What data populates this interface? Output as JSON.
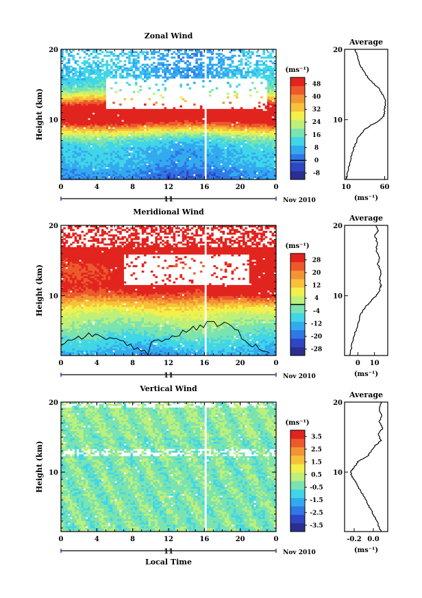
{
  "chart_data": [
    {
      "type": "heatmap",
      "title": "Zonal Wind",
      "ylabel": "Height (km)",
      "ylim": [
        1.5,
        20
      ],
      "y_ticks": [
        {
          "v": 10,
          "label": "10"
        },
        {
          "v": 20,
          "label": "20"
        }
      ],
      "x_ticks": [
        "0",
        "4",
        "8",
        "12",
        "16",
        "20",
        "0"
      ],
      "xlim": [
        0,
        24
      ],
      "date_axis": {
        "day_label": "11",
        "month_label": "Nov 2010"
      },
      "units": "(ms⁻¹)",
      "colorbar": {
        "ticks": [
          "48",
          "40",
          "32",
          "24",
          "16",
          "8",
          "0",
          "-8"
        ],
        "values": [
          48,
          40,
          32,
          24,
          16,
          8,
          0,
          -8
        ],
        "vmin": -12,
        "vmax": 52,
        "zero_line": 0
      },
      "profile": {
        "title": "Average",
        "xlim": [
          8,
          64
        ],
        "x_ticks": [
          {
            "v": 10,
            "label": "10"
          },
          {
            "v": 60,
            "label": "60"
          }
        ],
        "xlabel": "(ms⁻¹)",
        "points": [
          [
            10,
            1.5
          ],
          [
            13,
            3
          ],
          [
            16,
            4.5
          ],
          [
            20,
            6
          ],
          [
            26,
            7.5
          ],
          [
            33,
            8.5
          ],
          [
            42,
            9.2
          ],
          [
            52,
            9.8
          ],
          [
            59,
            10.5
          ],
          [
            60,
            11.5
          ],
          [
            61,
            12.5
          ],
          [
            58,
            13.5
          ],
          [
            52,
            14.5
          ],
          [
            45,
            15.2
          ],
          [
            38,
            16
          ],
          [
            32,
            17
          ],
          [
            27,
            18
          ],
          [
            24,
            19.2
          ],
          [
            22,
            20
          ]
        ]
      },
      "contour": false
    },
    {
      "type": "heatmap",
      "title": "Meridional Wind",
      "ylabel": "Height (km)",
      "ylim": [
        1.5,
        20
      ],
      "y_ticks": [
        {
          "v": 10,
          "label": "10"
        },
        {
          "v": 20,
          "label": "20"
        }
      ],
      "x_ticks": [
        "0",
        "4",
        "8",
        "12",
        "16",
        "20",
        "0"
      ],
      "xlim": [
        0,
        24
      ],
      "date_axis": {
        "day_label": "11",
        "month_label": "Nov 2010"
      },
      "units": "(ms⁻¹)",
      "colorbar": {
        "ticks": [
          "28",
          "20",
          "12",
          "4",
          "-4",
          "-12",
          "-20",
          "-28"
        ],
        "values": [
          28,
          20,
          12,
          4,
          -4,
          -12,
          -20,
          -28
        ],
        "vmin": -32,
        "vmax": 32,
        "zero_line": 0
      },
      "profile": {
        "title": "Average",
        "xlim": [
          -8,
          18
        ],
        "x_ticks": [
          {
            "v": 0,
            "label": "0"
          },
          {
            "v": 10,
            "label": "10"
          }
        ],
        "xlabel": "(ms⁻¹)",
        "points": [
          [
            -5,
            1.5
          ],
          [
            -3.5,
            3
          ],
          [
            -2,
            4.5
          ],
          [
            0,
            6
          ],
          [
            2,
            7.5
          ],
          [
            5,
            8.5
          ],
          [
            8,
            9.3
          ],
          [
            11,
            10
          ],
          [
            13,
            10.8
          ],
          [
            14,
            11.5
          ],
          [
            13,
            12.5
          ],
          [
            14,
            13.5
          ],
          [
            12,
            14.5
          ],
          [
            13,
            15.5
          ],
          [
            11,
            16.5
          ],
          [
            12,
            17.5
          ],
          [
            10,
            18.5
          ],
          [
            12,
            19.2
          ],
          [
            11,
            20
          ]
        ]
      },
      "contour": true
    },
    {
      "type": "heatmap",
      "title": "Vertical Wind",
      "ylabel": "Height (km)",
      "ylim": [
        1.5,
        20
      ],
      "y_ticks": [
        {
          "v": 10,
          "label": "10"
        },
        {
          "v": 20,
          "label": "20"
        }
      ],
      "x_ticks": [
        "0",
        "4",
        "8",
        "12",
        "16",
        "20",
        "0"
      ],
      "xlim": [
        0,
        24
      ],
      "date_axis": {
        "day_label": "11",
        "month_label": "Nov 2010"
      },
      "xlabel": "Local Time",
      "units": "(ms⁻¹)",
      "colorbar": {
        "ticks": [
          "3.5",
          "2.5",
          "1.5",
          "0.5",
          "-0.5",
          "-1.5",
          "-2.5",
          "-3.5"
        ],
        "values": [
          3.5,
          2.5,
          1.5,
          0.5,
          -0.5,
          -1.5,
          -2.5,
          -3.5
        ],
        "vmin": -4,
        "vmax": 4,
        "zero_line": null
      },
      "profile": {
        "title": "Average",
        "xlim": [
          -0.3,
          0.15
        ],
        "x_ticks": [
          {
            "v": -0.2,
            "label": "-0.2"
          },
          {
            "v": 0.0,
            "label": "0.0"
          }
        ],
        "xlabel": "(ms⁻¹)",
        "points": [
          [
            0.08,
            1.5
          ],
          [
            0.05,
            2.5
          ],
          [
            0.02,
            3.5
          ],
          [
            -0.02,
            4.5
          ],
          [
            -0.06,
            5.5
          ],
          [
            -0.1,
            6.5
          ],
          [
            -0.14,
            7.5
          ],
          [
            -0.18,
            8.5
          ],
          [
            -0.22,
            9.3
          ],
          [
            -0.24,
            10
          ],
          [
            -0.2,
            10.7
          ],
          [
            -0.16,
            11.5
          ],
          [
            -0.06,
            12.3
          ],
          [
            -0.02,
            13
          ],
          [
            0.02,
            13.8
          ],
          [
            0.08,
            14.5
          ],
          [
            0.05,
            15.5
          ],
          [
            0.1,
            16.3
          ],
          [
            0.06,
            17.2
          ],
          [
            0.09,
            18
          ],
          [
            0.06,
            19
          ],
          [
            0.08,
            20
          ]
        ]
      },
      "contour": false
    }
  ]
}
